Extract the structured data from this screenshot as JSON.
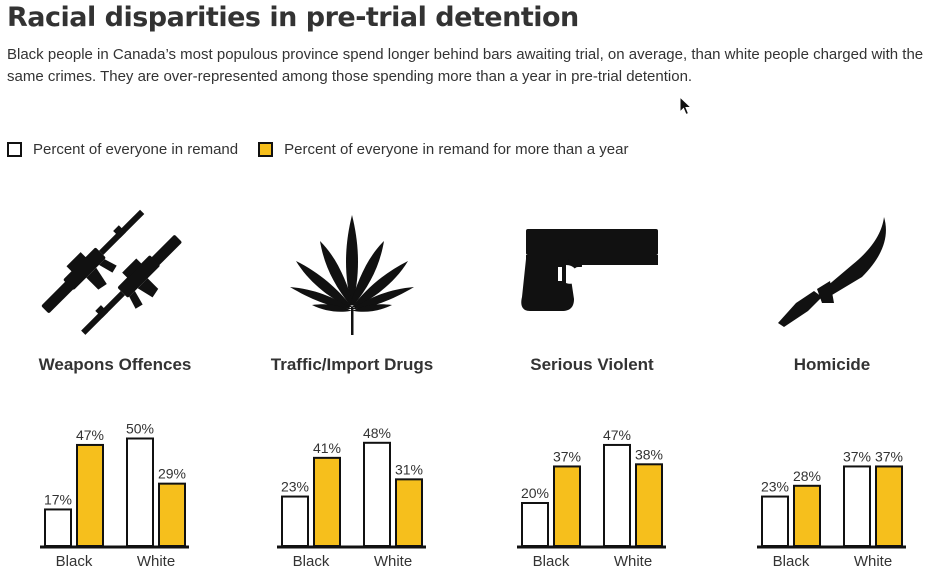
{
  "title": "Racial disparities in pre-trial detention",
  "subtitle": "Black people in Canada’s most populous province spend longer behind bars awaiting trial, on average, than white people charged with the same crimes. They are over-represented among those spending more than a year in pre-trial detention.",
  "legend": {
    "remand_label": "Percent of everyone in remand",
    "long_remand_label": "Percent of everyone in remand for more than a year"
  },
  "colors": {
    "remand": "#ffffff",
    "long_remand": "#f6bf1c",
    "outline": "#111111"
  },
  "panels": [
    {
      "title": "Weapons Offences",
      "icon": "assault-rifles-icon"
    },
    {
      "title": "Traffic/Import Drugs",
      "icon": "cannabis-leaf-icon"
    },
    {
      "title": "Serious Violent",
      "icon": "handgun-icon"
    },
    {
      "title": "Homicide",
      "icon": "knife-icon"
    }
  ],
  "chart_data": [
    {
      "type": "bar",
      "title": "Weapons Offences",
      "categories": [
        "Black",
        "White"
      ],
      "series": [
        {
          "name": "Percent of everyone in remand",
          "values": [
            17,
            50
          ],
          "labels": [
            "17%",
            "50%"
          ]
        },
        {
          "name": "Percent of everyone in remand for more than a year",
          "values": [
            47,
            29
          ],
          "labels": [
            "47%",
            "29%"
          ]
        }
      ],
      "ylim": [
        0,
        50
      ]
    },
    {
      "type": "bar",
      "title": "Traffic/Import Drugs",
      "categories": [
        "Black",
        "White"
      ],
      "series": [
        {
          "name": "Percent of everyone in remand",
          "values": [
            23,
            48
          ],
          "labels": [
            "23%",
            "48%"
          ]
        },
        {
          "name": "Percent of everyone in remand for more than a year",
          "values": [
            41,
            31
          ],
          "labels": [
            "41%",
            "31%"
          ]
        }
      ],
      "ylim": [
        0,
        50
      ]
    },
    {
      "type": "bar",
      "title": "Serious Violent",
      "categories": [
        "Black",
        "White"
      ],
      "series": [
        {
          "name": "Percent of everyone in remand",
          "values": [
            20,
            47
          ],
          "labels": [
            "20%",
            "47%"
          ]
        },
        {
          "name": "Percent of everyone in remand for more than a year",
          "values": [
            37,
            38
          ],
          "labels": [
            "37%",
            "38%"
          ]
        }
      ],
      "ylim": [
        0,
        50
      ]
    },
    {
      "type": "bar",
      "title": "Homicide",
      "categories": [
        "Black",
        "White"
      ],
      "series": [
        {
          "name": "Percent of everyone in remand",
          "values": [
            23,
            37
          ],
          "labels": [
            "23%",
            "37%"
          ]
        },
        {
          "name": "Percent of everyone in remand for more than a year",
          "values": [
            28,
            37
          ],
          "labels": [
            "28%",
            "37%"
          ]
        }
      ],
      "ylim": [
        0,
        50
      ]
    }
  ]
}
